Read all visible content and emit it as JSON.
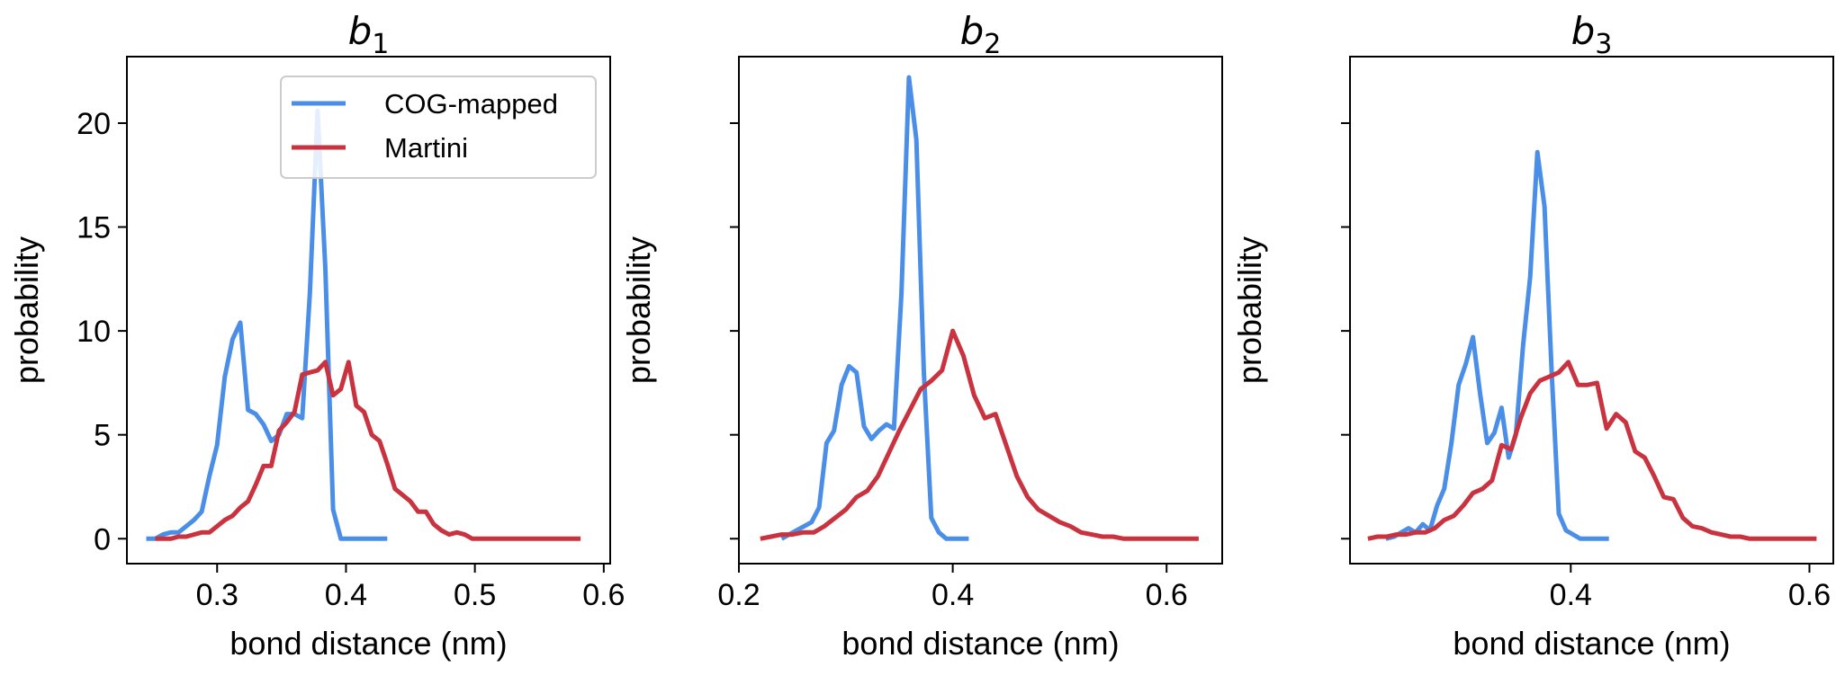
{
  "colors": {
    "cog": "#4a8ee8",
    "martini": "#c8333f",
    "axis": "#000000",
    "legend_border": "#cccccc"
  },
  "legend": {
    "cog_label": "COG-mapped",
    "martini_label": "Martini"
  },
  "chart_data": [
    {
      "type": "line",
      "title": "b",
      "title_subscript": "1",
      "xlabel": "bond distance (nm)",
      "ylabel": "probability",
      "xlim": [
        0.23,
        0.605
      ],
      "ylim": [
        -1.2,
        23.2
      ],
      "xticks": [
        0.3,
        0.4,
        0.5,
        0.6
      ],
      "xtick_labels": [
        "0.3",
        "0.4",
        "0.5",
        "0.6"
      ],
      "yticks": [
        0,
        5,
        10,
        15,
        20
      ],
      "ytick_labels": [
        "0",
        "5",
        "10",
        "15",
        "20"
      ],
      "show_ytick_labels": true,
      "legend": "top-right",
      "series": [
        {
          "name": "COG-mapped",
          "x": [
            0.245,
            0.252,
            0.258,
            0.264,
            0.27,
            0.276,
            0.282,
            0.288,
            0.294,
            0.3,
            0.306,
            0.312,
            0.318,
            0.324,
            0.33,
            0.336,
            0.342,
            0.348,
            0.354,
            0.36,
            0.366,
            0.372,
            0.378,
            0.384,
            0.39,
            0.396,
            0.402,
            0.408,
            0.414,
            0.42,
            0.426,
            0.432
          ],
          "y": [
            0.0,
            0.0,
            0.2,
            0.3,
            0.3,
            0.6,
            0.9,
            1.3,
            3.0,
            4.5,
            7.8,
            9.6,
            10.4,
            6.2,
            6.0,
            5.5,
            4.7,
            5.0,
            6.0,
            6.0,
            5.8,
            11.8,
            20.6,
            13.0,
            1.4,
            0.0,
            0.0,
            0.0,
            0.0,
            0.0,
            0.0,
            0.0
          ],
          "x_note": "digitized"
        },
        {
          "name": "Martini",
          "x": [
            0.252,
            0.258,
            0.264,
            0.27,
            0.276,
            0.282,
            0.288,
            0.294,
            0.3,
            0.306,
            0.312,
            0.318,
            0.324,
            0.33,
            0.336,
            0.342,
            0.348,
            0.354,
            0.36,
            0.366,
            0.372,
            0.378,
            0.384,
            0.39,
            0.396,
            0.402,
            0.408,
            0.414,
            0.42,
            0.426,
            0.432,
            0.438,
            0.444,
            0.45,
            0.456,
            0.462,
            0.468,
            0.474,
            0.48,
            0.486,
            0.492,
            0.498,
            0.504,
            0.51,
            0.516,
            0.522,
            0.528,
            0.534,
            0.54,
            0.546,
            0.552,
            0.558,
            0.564,
            0.57,
            0.576,
            0.582
          ],
          "y": [
            0.0,
            0.0,
            0.0,
            0.1,
            0.1,
            0.2,
            0.3,
            0.3,
            0.6,
            0.9,
            1.1,
            1.5,
            1.8,
            2.6,
            3.5,
            3.5,
            5.2,
            5.6,
            6.1,
            7.9,
            8.0,
            8.1,
            8.5,
            6.9,
            7.2,
            8.5,
            6.4,
            6.1,
            5.0,
            4.7,
            3.6,
            2.4,
            2.1,
            1.8,
            1.3,
            1.3,
            0.7,
            0.4,
            0.2,
            0.3,
            0.2,
            0.0,
            0.0,
            0.0,
            0.0,
            0.0,
            0.0,
            0.0,
            0.0,
            0.0,
            0.0,
            0.0,
            0.0,
            0.0,
            0.0,
            0.0
          ]
        }
      ]
    },
    {
      "type": "line",
      "title": "b",
      "title_subscript": "2",
      "xlabel": "bond distance (nm)",
      "ylabel": "probability",
      "xlim": [
        0.2,
        0.652
      ],
      "ylim": [
        -1.2,
        23.2
      ],
      "xticks": [
        0.2,
        0.4,
        0.6
      ],
      "xtick_labels": [
        "0.2",
        "0.4",
        "0.6"
      ],
      "yticks": [
        0,
        5,
        10,
        15,
        20
      ],
      "ytick_labels": [
        "0",
        "5",
        "10",
        "15",
        "20"
      ],
      "show_ytick_labels": false,
      "series": [
        {
          "name": "COG-mapped",
          "x": [
            0.24,
            0.247,
            0.254,
            0.261,
            0.268,
            0.275,
            0.282,
            0.289,
            0.296,
            0.303,
            0.31,
            0.317,
            0.324,
            0.331,
            0.338,
            0.345,
            0.352,
            0.359,
            0.366,
            0.373,
            0.38,
            0.387,
            0.394,
            0.401,
            0.408,
            0.415
          ],
          "y": [
            0.0,
            0.2,
            0.4,
            0.6,
            0.8,
            1.5,
            4.6,
            5.2,
            7.4,
            8.3,
            8.0,
            5.4,
            4.8,
            5.2,
            5.5,
            5.3,
            11.8,
            22.2,
            19.2,
            8.0,
            1.0,
            0.3,
            0.0,
            0.0,
            0.0,
            0.0
          ]
        },
        {
          "name": "Martini",
          "x": [
            0.22,
            0.23,
            0.24,
            0.25,
            0.26,
            0.27,
            0.28,
            0.29,
            0.3,
            0.31,
            0.32,
            0.33,
            0.34,
            0.35,
            0.36,
            0.37,
            0.38,
            0.39,
            0.4,
            0.41,
            0.42,
            0.43,
            0.44,
            0.45,
            0.46,
            0.47,
            0.48,
            0.49,
            0.5,
            0.51,
            0.52,
            0.53,
            0.54,
            0.55,
            0.56,
            0.57,
            0.58,
            0.59,
            0.6,
            0.61,
            0.62,
            0.63
          ],
          "y": [
            0.0,
            0.1,
            0.2,
            0.2,
            0.3,
            0.3,
            0.6,
            1.0,
            1.4,
            2.0,
            2.3,
            3.0,
            4.1,
            5.2,
            6.2,
            7.2,
            7.6,
            8.1,
            10.0,
            8.8,
            6.9,
            5.8,
            6.0,
            4.5,
            3.0,
            2.0,
            1.4,
            1.1,
            0.8,
            0.6,
            0.3,
            0.2,
            0.1,
            0.1,
            0.0,
            0.0,
            0.0,
            0.0,
            0.0,
            0.0,
            0.0,
            0.0
          ]
        }
      ]
    },
    {
      "type": "line",
      "title": "b",
      "title_subscript": "3",
      "xlabel": "bond distance (nm)",
      "ylabel": "probability",
      "xlim": [
        0.215,
        0.62
      ],
      "ylim": [
        -1.2,
        23.2
      ],
      "xticks": [
        0.4,
        0.6
      ],
      "xtick_labels": [
        "0.4",
        "0.6"
      ],
      "yticks": [
        0,
        5,
        10,
        15,
        20
      ],
      "ytick_labels": [
        "0",
        "5",
        "10",
        "15",
        "20"
      ],
      "show_ytick_labels": false,
      "series": [
        {
          "name": "COG-mapped",
          "x": [
            0.245,
            0.252,
            0.258,
            0.264,
            0.27,
            0.276,
            0.282,
            0.288,
            0.294,
            0.3,
            0.306,
            0.312,
            0.318,
            0.324,
            0.33,
            0.336,
            0.342,
            0.348,
            0.354,
            0.36,
            0.366,
            0.372,
            0.378,
            0.384,
            0.39,
            0.396,
            0.402,
            0.408,
            0.414,
            0.42,
            0.426,
            0.432
          ],
          "y": [
            0.0,
            0.1,
            0.3,
            0.5,
            0.3,
            0.7,
            0.4,
            1.6,
            2.4,
            4.6,
            7.4,
            8.4,
            9.7,
            7.0,
            4.6,
            5.1,
            6.3,
            3.9,
            5.0,
            9.3,
            12.6,
            18.6,
            16.0,
            8.0,
            1.2,
            0.4,
            0.2,
            0.0,
            0.0,
            0.0,
            0.0,
            0.0
          ]
        },
        {
          "name": "Martini",
          "x": [
            0.23,
            0.238,
            0.246,
            0.254,
            0.262,
            0.27,
            0.278,
            0.286,
            0.294,
            0.302,
            0.31,
            0.318,
            0.326,
            0.334,
            0.342,
            0.35,
            0.358,
            0.366,
            0.374,
            0.382,
            0.39,
            0.398,
            0.406,
            0.414,
            0.422,
            0.43,
            0.438,
            0.446,
            0.454,
            0.462,
            0.47,
            0.478,
            0.486,
            0.494,
            0.502,
            0.51,
            0.518,
            0.526,
            0.534,
            0.542,
            0.55,
            0.558,
            0.566,
            0.574,
            0.582,
            0.59,
            0.598,
            0.606
          ],
          "y": [
            0.0,
            0.1,
            0.1,
            0.2,
            0.2,
            0.3,
            0.3,
            0.5,
            0.9,
            1.1,
            1.6,
            2.2,
            2.4,
            2.8,
            4.5,
            4.3,
            5.8,
            7.0,
            7.6,
            7.8,
            8.0,
            8.5,
            7.4,
            7.4,
            7.5,
            5.3,
            6.0,
            5.6,
            4.2,
            3.9,
            3.0,
            2.0,
            1.9,
            1.0,
            0.6,
            0.5,
            0.3,
            0.2,
            0.1,
            0.1,
            0.0,
            0.0,
            0.0,
            0.0,
            0.0,
            0.0,
            0.0,
            0.0
          ]
        }
      ]
    }
  ]
}
